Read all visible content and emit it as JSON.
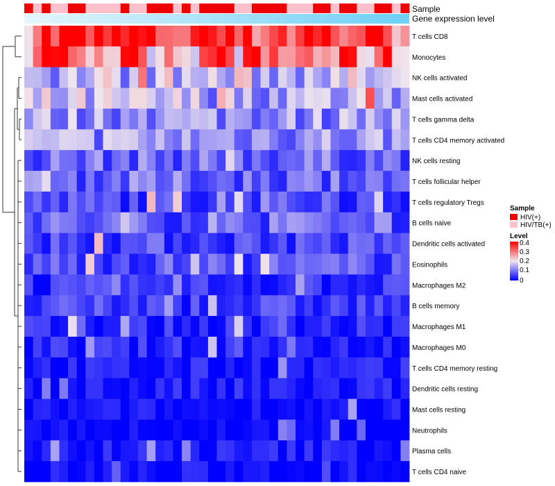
{
  "chart_data": {
    "type": "heatmap",
    "annotation_title": "Sample",
    "expression_bar_label": "Gene expression level",
    "rows": [
      "T cells CD8",
      "Monocytes",
      "NK cells activated",
      "Mast cells activated",
      "T cells gamma delta",
      "T cells CD4 memory activated",
      "NK cells resting",
      "T cells follicular helper",
      "T cells regulatory  Tregs",
      "B cells naive",
      "Dendritic cells activated",
      "Eosinophils",
      "Macrophages M2",
      "B cells memory",
      "Macrophages M1",
      "Macrophages M0",
      "T cells CD4 memory resting",
      "Dendritic cells resting",
      "Mast cells resting",
      "Neutrophils",
      "Plasma cells",
      "T cells CD4 naive"
    ],
    "n_samples": 44,
    "sample_groups": [
      "HIV(+)",
      "HIV/TB(+)",
      "HIV(+)",
      "HIV/TB(+)",
      "HIV/TB(+)",
      "HIV(+)",
      "HIV(+)",
      "HIV/TB(+)",
      "HIV/TB(+)",
      "HIV/TB(+)",
      "HIV/TB(+)",
      "HIV(+)",
      "HIV/TB(+)",
      "HIV/TB(+)",
      "HIV(+)",
      "HIV(+)",
      "HIV(+)",
      "HIV/TB(+)",
      "HIV(+)",
      "HIV/TB(+)",
      "HIV(+)",
      "HIV(+)",
      "HIV(+)",
      "HIV(+)",
      "HIV/TB(+)",
      "HIV/TB(+)",
      "HIV(+)",
      "HIV(+)",
      "HIV(+)",
      "HIV(+)",
      "HIV/TB(+)",
      "HIV/TB(+)",
      "HIV/TB(+)",
      "HIV(+)",
      "HIV(+)",
      "HIV/TB(+)",
      "HIV(+)",
      "HIV(+)",
      "HIV/TB(+)",
      "HIV/TB(+)",
      "HIV(+)",
      "HIV(+)",
      "HIV/TB(+)",
      "HIV(+)"
    ],
    "row_levels": [
      0.36,
      0.29,
      0.16,
      0.15,
      0.13,
      0.13,
      0.09,
      0.09,
      0.06,
      0.08,
      0.06,
      0.07,
      0.04,
      0.05,
      0.03,
      0.03,
      0.02,
      0.02,
      0.01,
      0.0,
      0.02,
      0.01
    ],
    "legend": {
      "sample_title": "Sample",
      "sample_entries": [
        {
          "label": "HIV(+)",
          "color": "#ee0000"
        },
        {
          "label": "HIV/TB(+)",
          "color": "#ffc0cb"
        }
      ],
      "level_title": "Level",
      "level_ticks": [
        "0.4",
        "0.3",
        "0.2",
        "0.1",
        "0"
      ],
      "level_range": [
        0,
        0.4
      ]
    },
    "colors": {
      "low": "#0000ff",
      "mid": "#f0e6ee",
      "high": "#ff0000",
      "expression_bar": "#6ccff6",
      "expression_bar_light": "#e6f6fc"
    }
  }
}
